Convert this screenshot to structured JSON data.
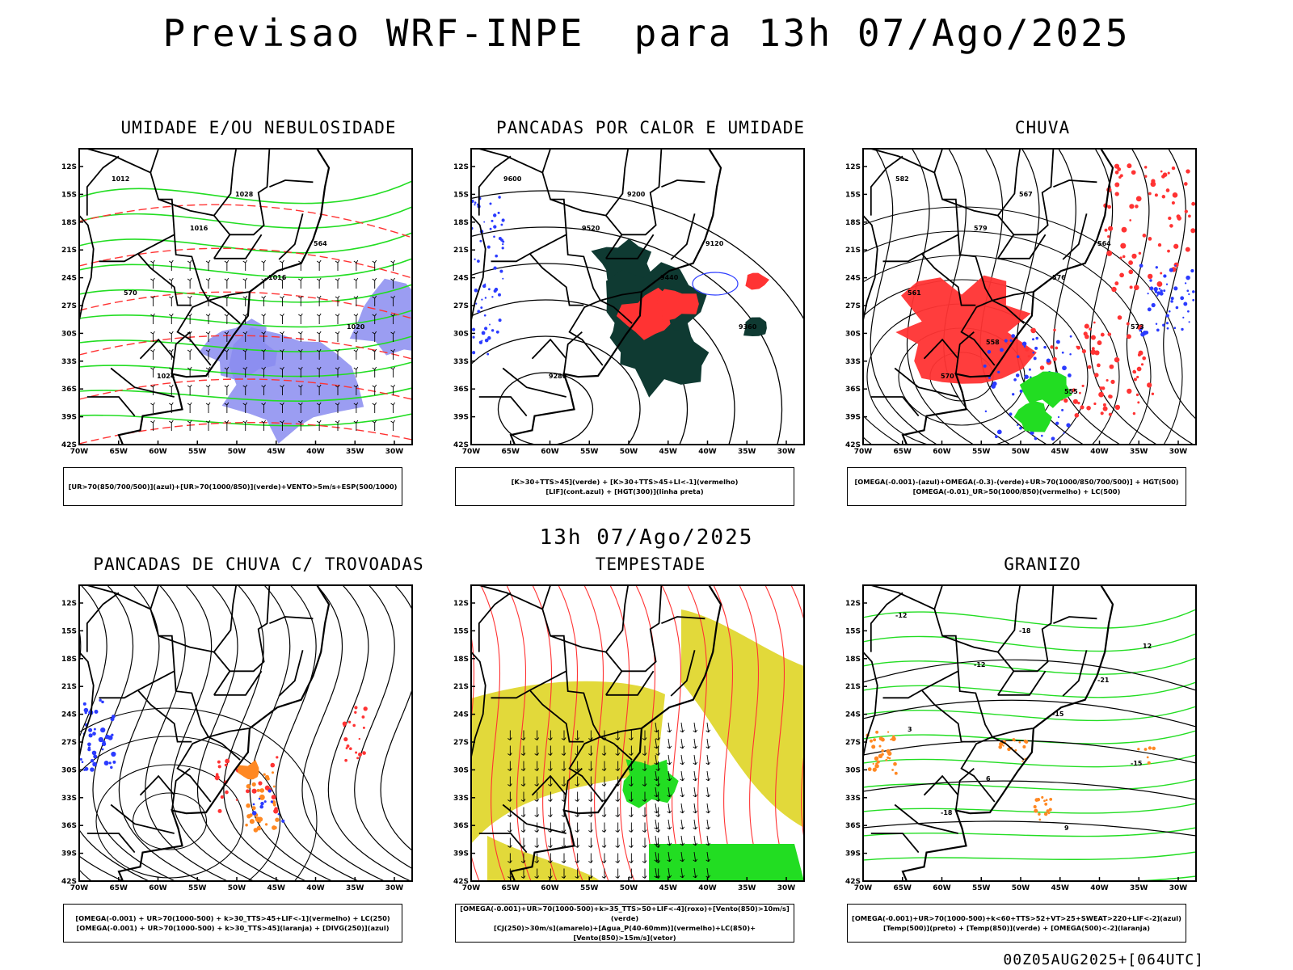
{
  "title": "Previsao WRF-INPE  para 13h 07/Ago/2025",
  "subtitle_mid": "13h 07/Ago/2025",
  "footer": "00Z05AUG2025+[064UTC]",
  "axes": {
    "lat_labels": [
      "12S",
      "15S",
      "18S",
      "21S",
      "24S",
      "27S",
      "30S",
      "33S",
      "36S",
      "39S",
      "42S"
    ],
    "lon_labels": [
      "70W",
      "65W",
      "60W",
      "55W",
      "50W",
      "45W",
      "40W",
      "35W",
      "30W"
    ]
  },
  "colors": {
    "blue": "#2b3bff",
    "green": "#22dd22",
    "red": "#ff3333",
    "dark_green": "#0f3a32",
    "lavender": "#8a8cf0",
    "yellow": "#e2d93a",
    "orange": "#ff8822"
  },
  "panels": [
    {
      "id": "umidade",
      "title": "UMIDADE E/OU NEBULOSIDADE",
      "legend": [
        "[UR>70(850/700/500)](azul)+[UR>70(1000/850)](verde)+VENTO>5m/s+ESP(500/1000)"
      ],
      "contour_labels": [
        "1012",
        "1016",
        "1016",
        "1020",
        "1024",
        "1028",
        "564",
        "570"
      ]
    },
    {
      "id": "pancadas-calor",
      "title": "PANCADAS POR CALOR E UMIDADE",
      "legend": [
        "[K>30+TTS>45](verde) + [K>30+TTS>45+LI<-1](vermelho)",
        "[LIF](cont.azul) + [HGT(300)](linha preta)"
      ],
      "contour_labels": [
        "9600",
        "9520",
        "9440",
        "9360",
        "9280",
        "9200",
        "9120"
      ]
    },
    {
      "id": "chuva",
      "title": "CHUVA",
      "legend": [
        "[OMEGA(-0.001)-(azul)+OMEGA(-0.3)-(verde)+UR>70(1000/850/700/500)] + HGT(500)",
        "[OMEGA(-0.01)_UR>50(1000/850)(vermelho) + LC(500)"
      ],
      "contour_labels": [
        "582",
        "579",
        "576",
        "573",
        "570",
        "567",
        "564",
        "561",
        "558",
        "555"
      ]
    },
    {
      "id": "trovoadas",
      "title": "PANCADAS DE CHUVA C/ TROVOADAS",
      "legend": [
        "[OMEGA(-0.001) + UR>70(1000-500) + k>30_TTS>45+LIF<-1](vermelho) + LC(250)",
        "[OMEGA(-0.001) + UR>70(1000-500) + k>30_TTS>45](laranja) + [DIVG(250)](azul)"
      ],
      "contour_labels": []
    },
    {
      "id": "tempestade",
      "title": "TEMPESTADE",
      "legend": [
        "[OMEGA(-0.001)+UR>70(1000-500)+k>35_TTS>50+LIF<-4](roxo)+[Vento(850)>10m/s](verde)",
        "[CJ(250)>30m/s](amarelo)+[Agua_P(40-60mm)](vermelho)+LC(850)+[Vento(850)>15m/s](vetor)"
      ],
      "contour_labels": []
    },
    {
      "id": "granizo",
      "title": "GRANIZO",
      "legend": [
        "[OMEGA(-0.001)+UR>70(1000-500)+k<60+TTS>52+VT>25+SWEAT>220+LIF<-2](azul)",
        "[Temp(500)](preto) + [Temp(850)](verde) + [OMEGA(500)<-2](laranja)"
      ],
      "contour_labels": [
        "-12",
        "-12",
        "-15",
        "-15",
        "-18",
        "-18",
        "-21",
        "3",
        "6",
        "9",
        "12"
      ]
    }
  ]
}
